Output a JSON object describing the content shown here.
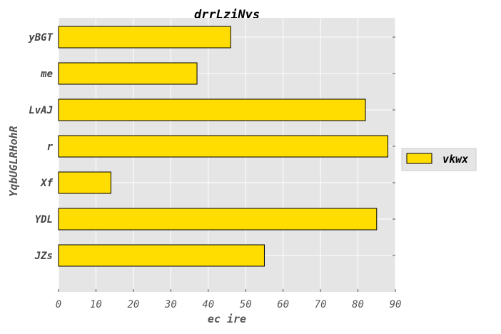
{
  "chart_data": {
    "type": "bar",
    "orientation": "horizontal",
    "title": "drrLziNys",
    "xlabel": "ec ire",
    "ylabel": "YqbUGLRHohR",
    "categories": [
      "yBGT",
      "me",
      "LvAJ",
      "r",
      "Xf",
      "YDL",
      "JZs"
    ],
    "series": [
      {
        "name": "vkwx",
        "values": [
          46,
          37,
          82,
          88,
          14,
          85,
          55
        ]
      }
    ],
    "xlim": [
      0,
      90
    ],
    "xticks": [
      0,
      10,
      20,
      30,
      40,
      50,
      60,
      70,
      80,
      90
    ],
    "grid": true,
    "legend_position": "right",
    "colors": {
      "bar": "#ffdd00",
      "edge": "#000000",
      "plot_bg": "#e5e5e5",
      "grid": "#ffffff"
    }
  }
}
